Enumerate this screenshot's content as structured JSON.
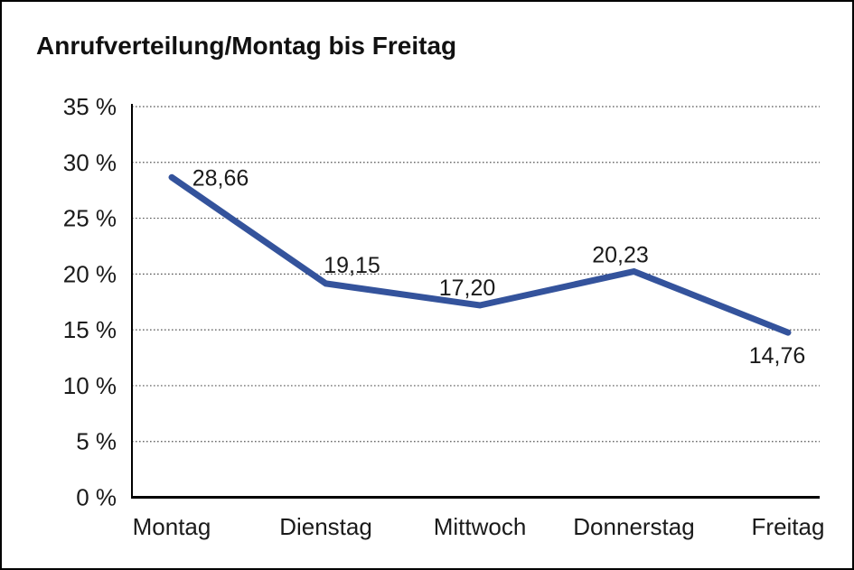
{
  "title": "Anrufverteilung/Montag bis Freitag",
  "chart_data": {
    "type": "line",
    "title": "Anrufverteilung/Montag bis Freitag",
    "categories": [
      "Montag",
      "Dienstag",
      "Mittwoch",
      "Donnerstag",
      "Freitag"
    ],
    "series": [
      {
        "name": "Anrufverteilung",
        "values": [
          28.66,
          19.15,
          17.2,
          20.23,
          14.76
        ],
        "data_labels": [
          "28,66",
          "19,15",
          "17,20",
          "20,23",
          "14,76"
        ]
      }
    ],
    "xlabel": "",
    "ylabel": "",
    "ylim": [
      0,
      35
    ],
    "y_step": 5,
    "y_tick_labels": [
      "35 %",
      "30 %",
      "25 %",
      "20 %",
      "15 %",
      "10 %",
      "5 %",
      "0 %"
    ],
    "grid": "horizontal-dotted",
    "legend": "none",
    "colors": {
      "line": "#34539C",
      "axis": "#000000",
      "gridline": "#555555",
      "text": "#1a1a1a",
      "background": "#ffffff"
    }
  }
}
